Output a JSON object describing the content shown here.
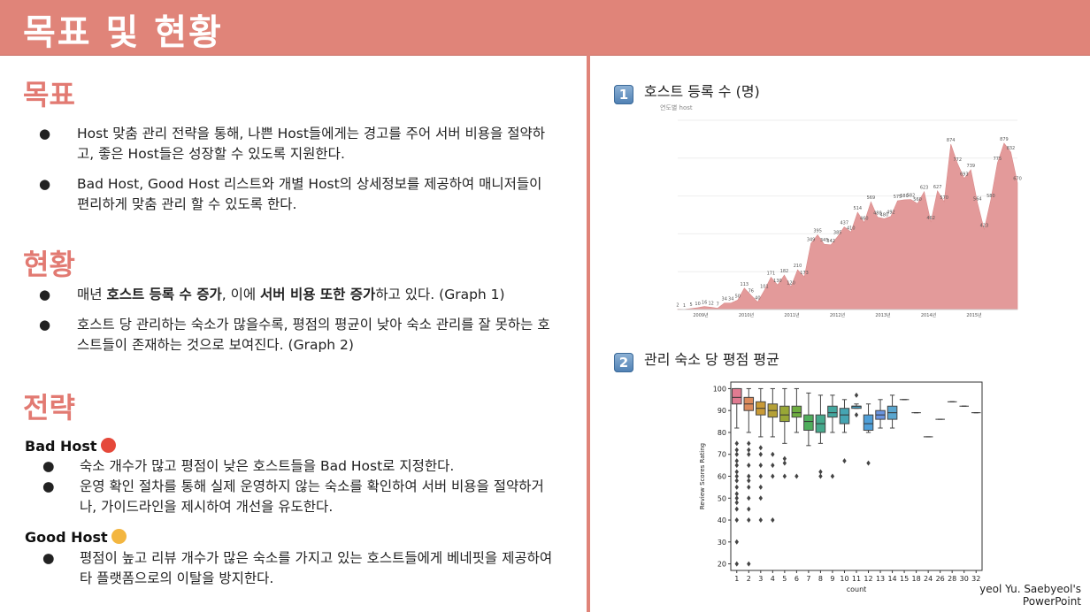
{
  "title": "목표 및 현황",
  "goal": {
    "heading": "목표",
    "bullets": [
      "Host 맞춤 관리 전략을 통해, 나쁜 Host들에게는 경고를 주어 서버 비용을 절약하고, 좋은 Host들은 성장할 수 있도록 지원한다.",
      "Bad Host, Good Host 리스트와 개별 Host의 상세정보를 제공하여 매니저들이 편리하게 맞춤 관리 할 수 있도록 한다."
    ]
  },
  "status": {
    "heading": "현황",
    "b1_pre": "매년 ",
    "b1_bold1": "호스트 등록 수 증가",
    "b1_mid": ", 이에 ",
    "b1_bold2": "서버 비용 또한 증가",
    "b1_post": "하고 있다. (Graph 1)",
    "b2": "호스트 당 관리하는 숙소가 많을수록, 평점의 평균이 낮아 숙소 관리를 잘 못하는 호스트들이 존재하는 것으로 보여진다. (Graph 2)"
  },
  "strategy": {
    "heading": "전략",
    "bad_title": "Bad Host",
    "bad_bullets": [
      "숙소 개수가 많고 평점이 낮은 호스트들을 Bad Host로 지정한다.",
      "운영 확인 절차를 통해 실제 운영하지 않는 숙소를 확인하여 서버 비용을 절약하거나, 가이드라인을 제시하여 개선을 유도한다."
    ],
    "good_title": "Good Host",
    "good_bullets": [
      "평점이 높고 리뷰 개수가 많은 숙소를 가지고 있는 호스트들에게 베네핏을 제공하여 타 플랫폼으로의 이탈을 방지한다."
    ]
  },
  "graph1": {
    "number": "1",
    "label": "호스트 등록 수 (명)",
    "chart_title": "연도별 host"
  },
  "graph2": {
    "number": "2",
    "label": "관리 숙소 당 평점 평균"
  },
  "credit_line1": "yeol Yu. Saebyeol's",
  "credit_line2": "PowerPoint",
  "colors": {
    "accent": "#e08479",
    "heading": "#e27a72",
    "area": "#e39a9a"
  },
  "chart_data": [
    {
      "type": "area",
      "title": "연도별 host",
      "x_tick_labels": [
        "2009년",
        "2010년",
        "2011년",
        "2012년",
        "2013년",
        "2014년",
        "2015년"
      ],
      "values": [
        2,
        1,
        5,
        10,
        16,
        12,
        7,
        34,
        34,
        50,
        113,
        76,
        40,
        101,
        171,
        130,
        182,
        120,
        210,
        173,
        349,
        395,
        345,
        342,
        385,
        437,
        410,
        514,
        460,
        569,
        488,
        480,
        492,
        575,
        580,
        582,
        560,
        623,
        462,
        627,
        570,
        874,
        772,
        693,
        739,
        564,
        423,
        580,
        775,
        879,
        832,
        670
      ],
      "point_labels": [
        "2",
        "1",
        "5",
        "10",
        "16",
        "12",
        "7",
        "34",
        "34",
        "50",
        "113",
        "76",
        "40",
        "101",
        "171",
        "130",
        "182",
        "120",
        "210",
        "173",
        "349",
        "395",
        "345",
        "342",
        "385",
        "437",
        "410",
        "514",
        "460",
        "569",
        "488",
        "480",
        "492",
        "575",
        "580",
        "582",
        "560",
        "623",
        "462",
        "627",
        "570",
        "874",
        "772",
        "693",
        "739",
        "564",
        "423",
        "580",
        "775",
        "879",
        "832",
        "670"
      ],
      "ylim": [
        0,
        1000
      ]
    },
    {
      "type": "box",
      "xlabel": "count",
      "ylabel": "Review Scores Rating",
      "y_ticks": [
        20,
        30,
        40,
        50,
        60,
        70,
        80,
        90,
        100
      ],
      "ylim": [
        17,
        103
      ],
      "categories": [
        "1",
        "2",
        "3",
        "4",
        "5",
        "6",
        "7",
        "8",
        "9",
        "10",
        "11",
        "12",
        "13",
        "14",
        "15",
        "18",
        "24",
        "26",
        "28",
        "30",
        "32"
      ],
      "boxes": [
        {
          "q1": 93,
          "med": 96,
          "q3": 100,
          "lo": 82,
          "hi": 100,
          "out": [
            20,
            30,
            40,
            45,
            48,
            50,
            52,
            55,
            58,
            60,
            62,
            65,
            67,
            70,
            72,
            75
          ],
          "color": "#e07b91"
        },
        {
          "q1": 90,
          "med": 93,
          "q3": 96,
          "lo": 80,
          "hi": 100,
          "out": [
            20,
            40,
            45,
            50,
            55,
            58,
            60,
            65,
            70,
            72,
            75
          ],
          "color": "#dc8b5d"
        },
        {
          "q1": 88,
          "med": 91,
          "q3": 94,
          "lo": 78,
          "hi": 100,
          "out": [
            40,
            50,
            55,
            60,
            65,
            70,
            73
          ],
          "color": "#c99a36"
        },
        {
          "q1": 87,
          "med": 90,
          "q3": 93,
          "lo": 78,
          "hi": 100,
          "out": [
            40,
            60,
            65,
            70
          ],
          "color": "#b5a137"
        },
        {
          "q1": 85,
          "med": 88,
          "q3": 92,
          "lo": 75,
          "hi": 100,
          "out": [
            60,
            66,
            68
          ],
          "color": "#98a736"
        },
        {
          "q1": 87,
          "med": 89,
          "q3": 92,
          "lo": 80,
          "hi": 100,
          "out": [
            60
          ],
          "color": "#6eae3f"
        },
        {
          "q1": 81,
          "med": 85,
          "q3": 88,
          "lo": 74,
          "hi": 98,
          "out": [],
          "color": "#4fae5c"
        },
        {
          "q1": 80,
          "med": 84,
          "q3": 88,
          "lo": 75,
          "hi": 97,
          "out": [
            60,
            62
          ],
          "color": "#45a98c"
        },
        {
          "q1": 87,
          "med": 89,
          "q3": 92,
          "lo": 80,
          "hi": 97,
          "out": [
            60
          ],
          "color": "#44a79f"
        },
        {
          "q1": 84,
          "med": 88,
          "q3": 91,
          "lo": 80,
          "hi": 95,
          "out": [
            67
          ],
          "color": "#46a5b3"
        },
        {
          "q1": 91,
          "med": 92,
          "q3": 92,
          "lo": 91,
          "hi": 93,
          "out": [
            88,
            97
          ],
          "color": "#48a3c5"
        },
        {
          "q1": 81,
          "med": 84,
          "q3": 88,
          "lo": 80,
          "hi": 93,
          "out": [
            66
          ],
          "color": "#4f9fd8"
        },
        {
          "q1": 86,
          "med": 88,
          "q3": 90,
          "lo": 82,
          "hi": 95,
          "out": [],
          "color": "#6a95e0"
        },
        {
          "q1": 86,
          "med": 89,
          "q3": 92,
          "lo": 82,
          "hi": 97,
          "out": [],
          "color": "#5aa6cf"
        },
        {
          "q1": 95,
          "med": 95,
          "q3": 95,
          "lo": 95,
          "hi": 95,
          "out": [],
          "color": "#888"
        },
        {
          "q1": 89,
          "med": 89,
          "q3": 89,
          "lo": 89,
          "hi": 89,
          "out": [],
          "color": "#888"
        },
        {
          "q1": 78,
          "med": 78,
          "q3": 78,
          "lo": 78,
          "hi": 78,
          "out": [],
          "color": "#888"
        },
        {
          "q1": 86,
          "med": 86,
          "q3": 86,
          "lo": 86,
          "hi": 86,
          "out": [],
          "color": "#888"
        },
        {
          "q1": 94,
          "med": 94,
          "q3": 94,
          "lo": 94,
          "hi": 94,
          "out": [],
          "color": "#888"
        },
        {
          "q1": 92,
          "med": 92,
          "q3": 92,
          "lo": 92,
          "hi": 92,
          "out": [],
          "color": "#888"
        },
        {
          "q1": 89,
          "med": 89,
          "q3": 89,
          "lo": 89,
          "hi": 89,
          "out": [],
          "color": "#888"
        }
      ]
    }
  ]
}
